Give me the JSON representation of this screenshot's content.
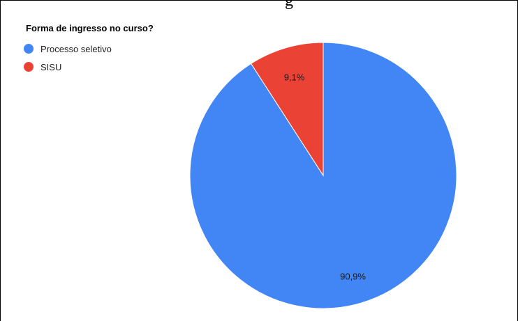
{
  "page": {
    "header_fragment": "g"
  },
  "chart_data": {
    "type": "pie",
    "title": "Forma de ingresso no curso?",
    "legend_position": "top-left",
    "categories": [
      "Processo seletivo",
      "SISU"
    ],
    "values": [
      90.9,
      9.1
    ],
    "labels": [
      "90,9%",
      "9,1%"
    ],
    "colors": [
      "#4285f4",
      "#ea4335"
    ]
  }
}
